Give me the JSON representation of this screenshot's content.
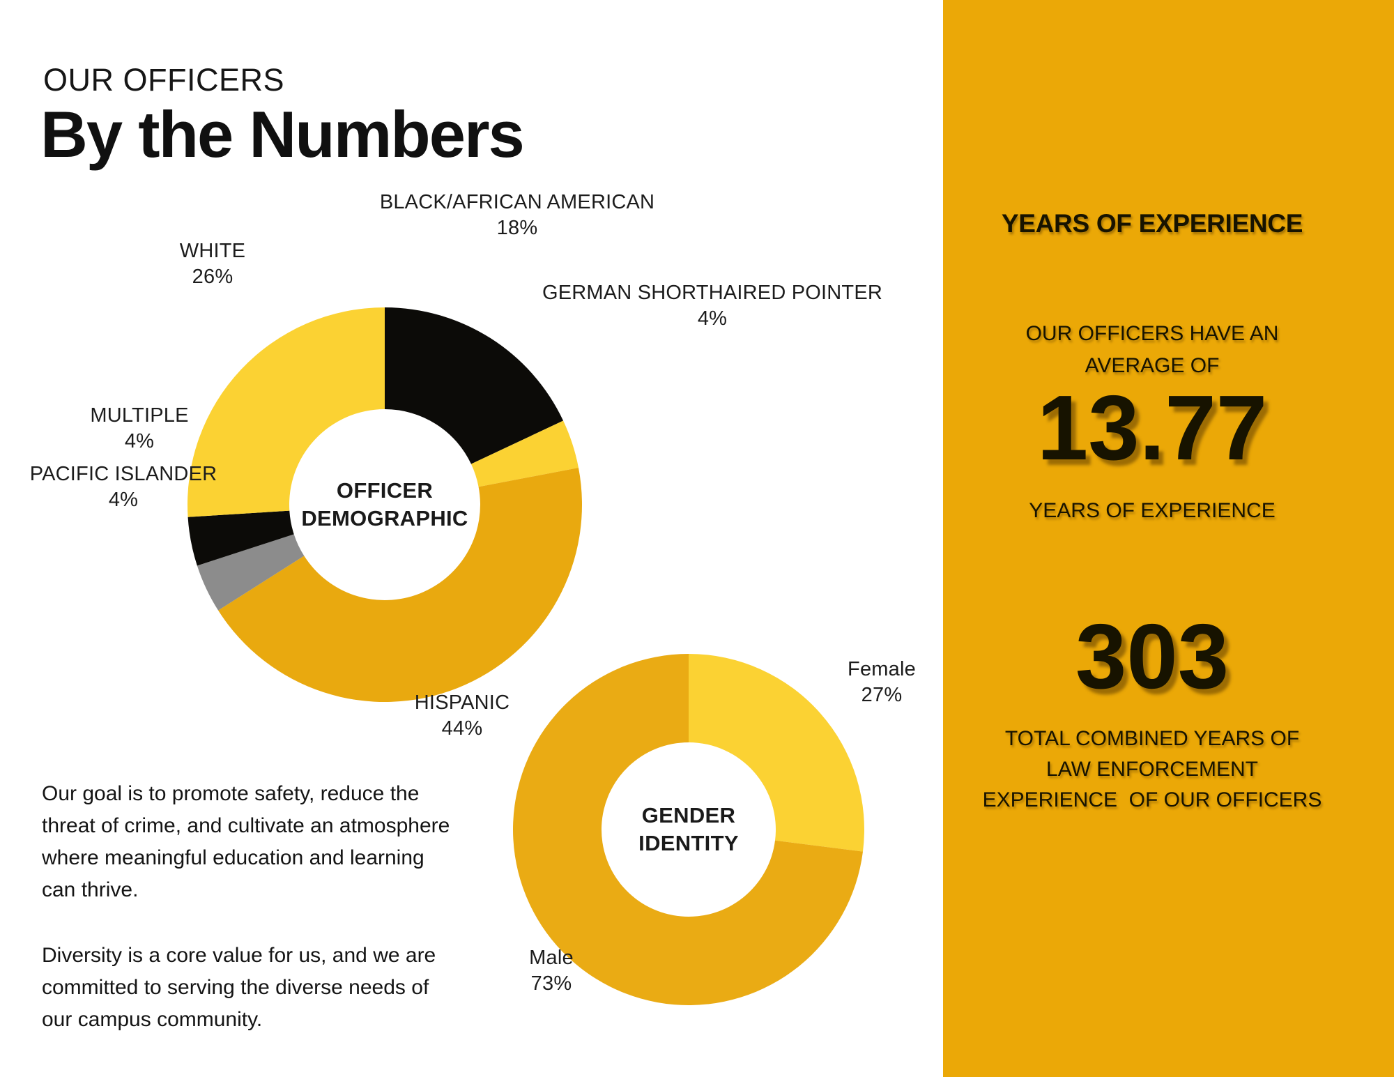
{
  "header": {
    "kicker": "OUR OFFICERS",
    "title": "By the Numbers"
  },
  "body_text": {
    "goal": "Our goal is to promote safety, reduce the\nthreat of crime, and cultivate an atmosphere\nwhere meaningful education and learning\ncan thrive.",
    "diversity": "Diversity is a core value for us, and we are\ncommitted to serving the diverse needs of\nour campus community."
  },
  "sidebar": {
    "header": "YEARS OF EXPERIENCE",
    "avg_intro": "OUR OFFICERS HAVE AN\nAVERAGE OF",
    "avg_value": "13.77",
    "avg_caption": "YEARS OF EXPERIENCE",
    "total_value": "303",
    "total_caption": "TOTAL COMBINED YEARS OF\nLAW ENFORCEMENT\nEXPERIENCE  OF OUR OFFICERS"
  },
  "colors": {
    "panel_gold": "#EBA807",
    "lemon_yellow": "#FBD233",
    "gold": "#E9A90F",
    "male_gold": "#EAAB14",
    "gray": "#8C8C8C",
    "black": "#0C0B08",
    "text_dark": "#1B1B1B"
  },
  "chart_data": [
    {
      "type": "pie",
      "subtype": "donut",
      "title": "OFFICER DEMOGRAPHIC",
      "center_label": "OFFICER\nDEMOGRAPHIC",
      "legend_position": "around",
      "segments": [
        {
          "label": "BLACK/AFRICAN AMERICAN",
          "pct": "18%",
          "value": 18,
          "color": "#0C0B08"
        },
        {
          "label": "GERMAN SHORTHAIRED POINTER",
          "pct": "4%",
          "value": 4,
          "color": "#FBD233"
        },
        {
          "label": "HISPANIC",
          "pct": "44%",
          "value": 44,
          "color": "#E9A90F"
        },
        {
          "label": "PACIFIC ISLANDER",
          "pct": "4%",
          "value": 4,
          "color": "#8C8C8C"
        },
        {
          "label": "MULTIPLE",
          "pct": "4%",
          "value": 4,
          "color": "#0C0B08"
        },
        {
          "label": "WHITE",
          "pct": "26%",
          "value": 26,
          "color": "#FBD233"
        }
      ]
    },
    {
      "type": "pie",
      "subtype": "donut",
      "title": "GENDER IDENTITY",
      "center_label": "GENDER\nIDENTITY",
      "legend_position": "around",
      "segments": [
        {
          "label": "Female",
          "pct": "27%",
          "value": 27,
          "color": "#FBD233"
        },
        {
          "label": "Male",
          "pct": "73%",
          "value": 73,
          "color": "#EAAB14"
        }
      ]
    }
  ]
}
